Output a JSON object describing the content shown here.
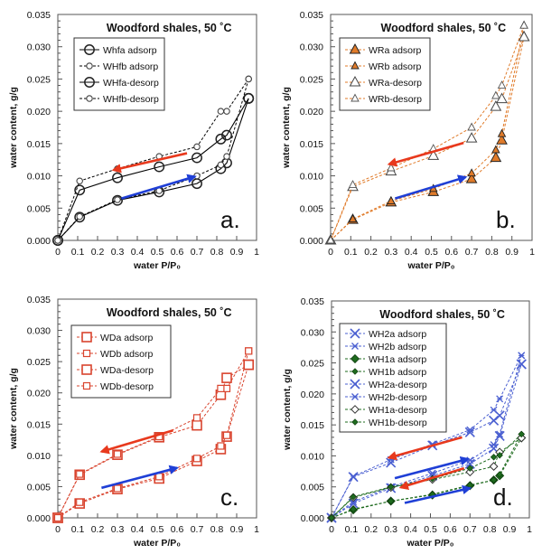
{
  "chart_data": [
    {
      "type": "line",
      "panel": "a.",
      "title": "Woodford shales,   50 ˚C",
      "xlabel": "water P/P₀",
      "ylabel": "water content,  g/g",
      "xlim": [
        0,
        1
      ],
      "ylim": [
        0,
        0.035
      ],
      "xticks": [
        "0",
        "0.1",
        "0.2",
        "0.3",
        "0.4",
        "0.5",
        "0.6",
        "0.7",
        "0.8",
        "0.9",
        "1"
      ],
      "yticks": [
        "0.000",
        "0.005",
        "0.010",
        "0.015",
        "0.020",
        "0.025",
        "0.030",
        "0.035"
      ],
      "grid": false,
      "legend_position": "top-left",
      "series": [
        {
          "name": "Whfa adsorp",
          "color": "#000000",
          "dash": false,
          "marker": "circle-open-large",
          "x": [
            0,
            0.11,
            0.3,
            0.51,
            0.7,
            0.82,
            0.85,
            0.96
          ],
          "y": [
            0,
            0.0036,
            0.0062,
            0.0075,
            0.0088,
            0.0111,
            0.012,
            0.022
          ]
        },
        {
          "name": "WHfb adsorp",
          "color": "#000000",
          "dash": true,
          "marker": "circle-open-small",
          "x": [
            0,
            0.11,
            0.3,
            0.51,
            0.7,
            0.82,
            0.85,
            0.96
          ],
          "y": [
            0,
            0.0037,
            0.0063,
            0.0077,
            0.01,
            0.0117,
            0.013,
            0.025
          ]
        },
        {
          "name": "WHfa-desorp",
          "color": "#000000",
          "dash": false,
          "marker": "circle-open-large",
          "x": [
            0.96,
            0.85,
            0.82,
            0.7,
            0.51,
            0.3,
            0.11,
            0
          ],
          "y": [
            0.022,
            0.0163,
            0.0157,
            0.0128,
            0.0114,
            0.0097,
            0.0078,
            0
          ]
        },
        {
          "name": "WHfb-desorp",
          "color": "#000000",
          "dash": true,
          "marker": "circle-open-small",
          "x": [
            0.96,
            0.85,
            0.82,
            0.7,
            0.51,
            0.3,
            0.11,
            0
          ],
          "y": [
            0.025,
            0.02,
            0.02,
            0.0145,
            0.013,
            0.0111,
            0.0092,
            0
          ]
        }
      ],
      "arrows": [
        {
          "direction": "desorption",
          "color": "#e8391d",
          "from": [
            0.65,
            0.0135
          ],
          "to": [
            0.28,
            0.0109
          ]
        },
        {
          "direction": "adsorption",
          "color": "#1f3fd6",
          "from": [
            0.32,
            0.0065
          ],
          "to": [
            0.69,
            0.0099
          ]
        }
      ]
    },
    {
      "type": "line",
      "panel": "b.",
      "title": "Woodford shales,   50 ˚C",
      "xlabel": "water P/P₀",
      "ylabel": "water content,  g/g",
      "xlim": [
        0,
        1
      ],
      "ylim": [
        0,
        0.035
      ],
      "xticks": [
        "0",
        "0.1",
        "0.2",
        "0.3",
        "0.4",
        "0.5",
        "0.6",
        "0.7",
        "0.8",
        "0.9",
        "1"
      ],
      "yticks": [
        "0.000",
        "0.005",
        "0.010",
        "0.015",
        "0.020",
        "0.025",
        "0.030",
        "0.035"
      ],
      "grid": false,
      "legend_position": "top-left",
      "series": [
        {
          "name": "WRa adsorp",
          "color": "#e07b2a",
          "dash": true,
          "marker": "triangle-filled-large",
          "x": [
            0,
            0.11,
            0.3,
            0.51,
            0.7,
            0.82,
            0.85,
            0.96
          ],
          "y": [
            0,
            0.0032,
            0.0059,
            0.0075,
            0.0095,
            0.0128,
            0.0155,
            0.0315
          ]
        },
        {
          "name": "WRb adsorp",
          "color": "#e07b2a",
          "dash": true,
          "marker": "triangle-filled-small",
          "x": [
            0,
            0.11,
            0.3,
            0.51,
            0.7,
            0.82,
            0.85,
            0.96
          ],
          "y": [
            0,
            0.0033,
            0.0061,
            0.008,
            0.0104,
            0.014,
            0.0165,
            0.0333
          ]
        },
        {
          "name": "WRa-desorp",
          "color": "#e07b2a",
          "dash": true,
          "marker": "triangle-open-large",
          "x": [
            0.96,
            0.85,
            0.82,
            0.7,
            0.51,
            0.3,
            0.11,
            0
          ],
          "y": [
            0.0315,
            0.0219,
            0.0207,
            0.0158,
            0.0131,
            0.0107,
            0.0083,
            0
          ]
        },
        {
          "name": "WRb-desorp",
          "color": "#e07b2a",
          "dash": true,
          "marker": "triangle-open-small",
          "x": [
            0.96,
            0.85,
            0.82,
            0.7,
            0.51,
            0.3,
            0.11,
            0
          ],
          "y": [
            0.0333,
            0.024,
            0.0224,
            0.0175,
            0.0142,
            0.0112,
            0.0086,
            0
          ]
        }
      ],
      "arrows": [
        {
          "direction": "desorption",
          "color": "#e8391d",
          "from": [
            0.66,
            0.0151
          ],
          "to": [
            0.29,
            0.0118
          ]
        },
        {
          "direction": "adsorption",
          "color": "#1f3fd6",
          "from": [
            0.32,
            0.0065
          ],
          "to": [
            0.67,
            0.0098
          ]
        }
      ]
    },
    {
      "type": "line",
      "panel": "c.",
      "title": "Woodford shales,   50 ˚C",
      "xlabel": "water P/P₀",
      "ylabel": "water content,  g/g",
      "xlim": [
        0,
        1
      ],
      "ylim": [
        0,
        0.035
      ],
      "xticks": [
        "0",
        "0.1",
        "0.2",
        "0.3",
        "0.4",
        "0.5",
        "0.6",
        "0.7",
        "0.8",
        "0.9",
        "1"
      ],
      "yticks": [
        "0.000",
        "0.005",
        "0.010",
        "0.015",
        "0.020",
        "0.025",
        "0.030",
        "0.035"
      ],
      "grid": false,
      "legend_position": "top-left",
      "series": [
        {
          "name": "WDa adsorp",
          "color": "#d9442e",
          "dash": true,
          "marker": "square-open-large",
          "x": [
            0,
            0.11,
            0.3,
            0.51,
            0.7,
            0.82,
            0.85,
            0.96
          ],
          "y": [
            0,
            0.0023,
            0.0046,
            0.0063,
            0.0091,
            0.011,
            0.013,
            0.0245
          ]
        },
        {
          "name": "WDb adsorp",
          "color": "#d9442e",
          "dash": true,
          "marker": "square-open-small",
          "x": [
            0,
            0.11,
            0.3,
            0.51,
            0.7,
            0.82,
            0.85,
            0.96
          ],
          "y": [
            0,
            0.0025,
            0.0047,
            0.0066,
            0.0095,
            0.0115,
            0.0132,
            0.0267
          ]
        },
        {
          "name": "WDa-desorp",
          "color": "#d9442e",
          "dash": true,
          "marker": "square-open-large",
          "x": [
            0.96,
            0.85,
            0.82,
            0.7,
            0.51,
            0.3,
            0.11,
            0
          ],
          "y": [
            0.0245,
            0.0224,
            0.0197,
            0.0148,
            0.0129,
            0.0101,
            0.0069,
            0
          ]
        },
        {
          "name": "WDb-desorp",
          "color": "#d9442e",
          "dash": true,
          "marker": "square-open-small",
          "x": [
            0.96,
            0.85,
            0.82,
            0.7,
            0.51,
            0.3,
            0.11,
            0
          ],
          "y": [
            0.0267,
            0.0207,
            0.0207,
            0.016,
            0.013,
            0.0102,
            0.007,
            0
          ]
        }
      ],
      "arrows": [
        {
          "direction": "desorption",
          "color": "#e8391d",
          "from": [
            0.58,
            0.014
          ],
          "to": [
            0.22,
            0.0106
          ]
        },
        {
          "direction": "adsorption",
          "color": "#1f3fd6",
          "from": [
            0.22,
            0.0048
          ],
          "to": [
            0.6,
            0.008
          ]
        }
      ]
    },
    {
      "type": "line",
      "panel": "d.",
      "title": "Woodford shales,   50 ˚C",
      "xlabel": "water P/P₀",
      "ylabel": "water content,  g/g",
      "xlim": [
        0,
        1
      ],
      "ylim": [
        0,
        0.035
      ],
      "xticks": [
        "0",
        "0.1",
        "0.2",
        "0.3",
        "0.4",
        "0.5",
        "0.6",
        "0.7",
        "0.8",
        "0.9",
        "1"
      ],
      "yticks": [
        "0.000",
        "0.005",
        "0.010",
        "0.015",
        "0.020",
        "0.025",
        "0.030",
        "0.035"
      ],
      "grid": false,
      "legend_position": "top-left",
      "series": [
        {
          "name": "WH2a adsorp",
          "color": "#4a5fd1",
          "dash": true,
          "marker": "x-large",
          "x": [
            0,
            0.11,
            0.3,
            0.51,
            0.7,
            0.82,
            0.85,
            0.96
          ],
          "y": [
            0,
            0.0023,
            0.0048,
            0.0068,
            0.0087,
            0.0112,
            0.0132,
            0.0248
          ]
        },
        {
          "name": "WH2b adsorp",
          "color": "#4a5fd1",
          "dash": true,
          "marker": "x-small",
          "x": [
            0,
            0.11,
            0.3,
            0.51,
            0.7,
            0.82,
            0.85,
            0.96
          ],
          "y": [
            0,
            0.0026,
            0.005,
            0.0072,
            0.0093,
            0.0118,
            0.0135,
            0.0262
          ]
        },
        {
          "name": "WH1a adsorp",
          "color": "#1e6b1e",
          "dash": true,
          "marker": "diamond-filled-large",
          "x": [
            0,
            0.11,
            0.3,
            0.51,
            0.7,
            0.82,
            0.85,
            0.96
          ],
          "y": [
            0,
            0.0013,
            0.0027,
            0.0037,
            0.0052,
            0.0061,
            0.0068,
            0.0129
          ]
        },
        {
          "name": "WH1b adsorp",
          "color": "#1e6b1e",
          "dash": true,
          "marker": "diamond-filled-small",
          "x": [
            0,
            0.11,
            0.3,
            0.51,
            0.7,
            0.82,
            0.85,
            0.96
          ],
          "y": [
            0,
            0.0014,
            0.0027,
            0.0038,
            0.0053,
            0.0061,
            0.007,
            0.0135
          ]
        },
        {
          "name": "WH2a-desorp",
          "color": "#4a5fd1",
          "dash": true,
          "marker": "x-large",
          "x": [
            0.96,
            0.85,
            0.82,
            0.7,
            0.51,
            0.3,
            0.11,
            0
          ],
          "y": [
            0.0248,
            0.0165,
            0.0157,
            0.0138,
            0.0117,
            0.0089,
            0.0066,
            0
          ]
        },
        {
          "name": "WH2b-desorp",
          "color": "#4a5fd1",
          "dash": true,
          "marker": "x-small",
          "x": [
            0.96,
            0.85,
            0.82,
            0.7,
            0.51,
            0.3,
            0.11,
            0
          ],
          "y": [
            0.0262,
            0.0192,
            0.0174,
            0.0142,
            0.0119,
            0.0094,
            0.0067,
            0
          ]
        },
        {
          "name": "WH1a-desorp",
          "color": "#1e6b1e",
          "dash": true,
          "marker": "diamond-open",
          "x": [
            0.96,
            0.85,
            0.82,
            0.7,
            0.51,
            0.3,
            0.11,
            0
          ],
          "y": [
            0.0129,
            0.0106,
            0.0083,
            0.0074,
            0.0062,
            0.0049,
            0.0033,
            0
          ]
        },
        {
          "name": "WH1b-desorp",
          "color": "#1e6b1e",
          "dash": true,
          "marker": "diamond-filled-small",
          "x": [
            0.96,
            0.85,
            0.82,
            0.7,
            0.51,
            0.3,
            0.11,
            0
          ],
          "y": [
            0.0135,
            0.0101,
            0.0098,
            0.008,
            0.0063,
            0.005,
            0.0034,
            0
          ]
        }
      ],
      "arrows": [
        {
          "direction": "desorption",
          "color": "#e8391d",
          "from": [
            0.66,
            0.013
          ],
          "to": [
            0.29,
            0.0097
          ]
        },
        {
          "direction": "adsorption",
          "color": "#1f3fd6",
          "from": [
            0.32,
            0.0064
          ],
          "to": [
            0.69,
            0.0095
          ]
        },
        {
          "direction": "desorption",
          "color": "#e8391d",
          "from": [
            0.67,
            0.008
          ],
          "to": [
            0.35,
            0.0049
          ]
        },
        {
          "direction": "adsorption",
          "color": "#1f3fd6",
          "from": [
            0.37,
            0.0024
          ],
          "to": [
            0.7,
            0.0048
          ]
        }
      ]
    }
  ]
}
